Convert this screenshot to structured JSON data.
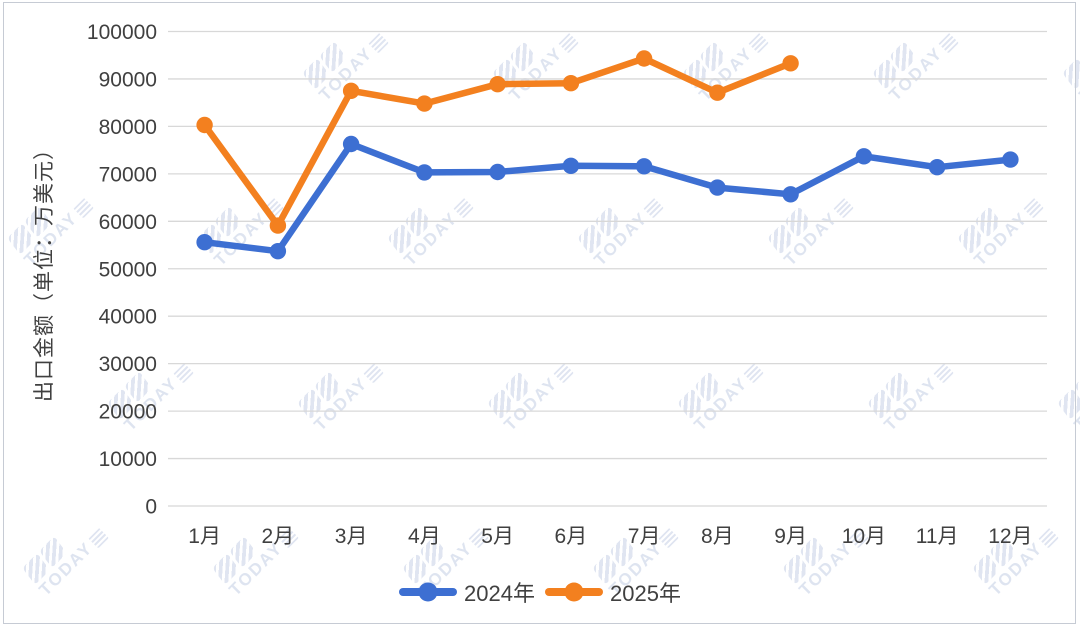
{
  "watermark": {
    "text": "TODAY",
    "color": "#dbe2ef"
  },
  "chart_data": {
    "type": "line",
    "title": "",
    "xlabel": "",
    "ylabel": "出口金额（单位：万美元）",
    "categories": [
      "1月",
      "2月",
      "3月",
      "4月",
      "5月",
      "6月",
      "7月",
      "8月",
      "9月",
      "10月",
      "11月",
      "12月"
    ],
    "series": [
      {
        "name": "2024年",
        "color": "#3d6fd2",
        "values": [
          55600,
          53700,
          76300,
          70300,
          70400,
          71700,
          71600,
          67100,
          65700,
          73700,
          71400,
          73000
        ]
      },
      {
        "name": "2025年",
        "color": "#f3801f",
        "values": [
          80300,
          59100,
          87500,
          84800,
          88900,
          89100,
          94300,
          87100,
          93300
        ]
      }
    ],
    "ylim": [
      0,
      100000
    ],
    "yticks": [
      0,
      10000,
      20000,
      30000,
      40000,
      50000,
      60000,
      70000,
      80000,
      90000,
      100000
    ],
    "grid": true,
    "gridline_color": "#d8d8d8",
    "legend_position": "bottom",
    "marker": "circle"
  }
}
